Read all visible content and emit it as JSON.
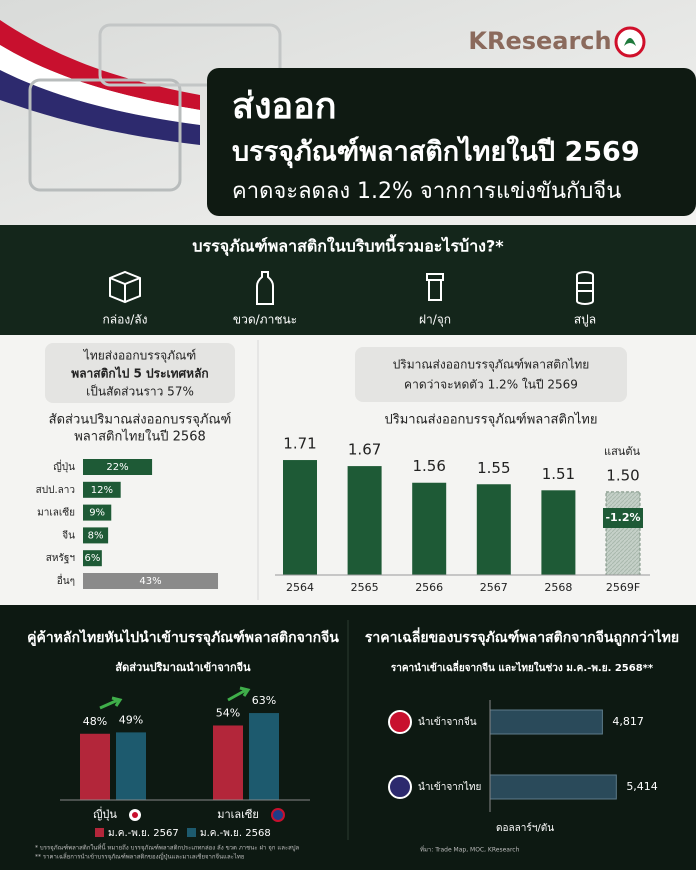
{
  "header": {
    "brand": "KResearch",
    "title_lines": [
      "ส่งออก",
      "บรรจุภัณฑ์พลาสติกไทยในปี 2569",
      "คาดจะลดลง 1.2% จากการแข่งขันกับจีน"
    ]
  },
  "products": {
    "title": "บรรจุภัณฑ์พลาสติกในบริบทนี้รวมอะไรบ้าง?*",
    "items": [
      "กล่อง/ลัง",
      "ขวด/ภาชนะ",
      "ฝา/จุก",
      "สปูล"
    ]
  },
  "callouts": [
    [
      "ไทยส่งออกบรรจุภัณฑ์",
      "พลาสติกไป 5 ประเทศหลัก",
      "เป็นสัดส่วนราว 57%"
    ],
    [
      "ปริมาณส่งออกบรรจุภัณฑ์พลาสติกไทย",
      "คาดว่าจะหดตัว 1.2% ในปี 2569"
    ]
  ],
  "chart_data": [
    {
      "type": "hbar",
      "title": [
        "สัดส่วนปริมาณส่งออกบรรจุภัณฑ์",
        "พลาสติกไทยในปี 2568"
      ],
      "categories": [
        "ญี่ปุ่น",
        "สปป.ลาว",
        "มาเลเซีย",
        "จีน",
        "สหรัฐฯ",
        "อื่นๆ"
      ],
      "values": [
        22,
        12,
        9,
        8,
        6,
        43
      ],
      "value_labels": [
        "22%",
        "12%",
        "9%",
        "8%",
        "6%",
        "43%"
      ],
      "colors": [
        "#1e5a36",
        "#1e5a36",
        "#1e5a36",
        "#1e5a36",
        "#1e5a36",
        "#8a8a8a"
      ],
      "xlim": [
        0,
        50
      ]
    },
    {
      "type": "bar",
      "title": "ปริมาณส่งออกบรรจุภัณฑ์พลาสติกไทย",
      "unit": "แสนตัน",
      "categories": [
        "2564",
        "2565",
        "2566",
        "2567",
        "2568",
        "2569F"
      ],
      "values": [
        1.71,
        1.67,
        1.56,
        1.55,
        1.51,
        1.5
      ],
      "value_labels": [
        "1.71",
        "1.67",
        "1.56",
        "1.55",
        "1.51",
        "1.50"
      ],
      "colors": [
        "#1e5a36",
        "#1e5a36",
        "#1e5a36",
        "#1e5a36",
        "#1e5a36",
        "#c5d0c8"
      ],
      "ylim": [
        0.95,
        1.75
      ],
      "annotation": "-1.2%"
    },
    {
      "type": "grouped-bar",
      "heading": "คู่ค้าหลักไทยหันไปนำเข้าบรรจุภัณฑ์พลาสติกจากจีน",
      "title": "สัดส่วนปริมาณนำเข้าจากจีน",
      "categories": [
        "ญี่ปุ่น",
        "มาเลเซีย"
      ],
      "series": [
        {
          "name": "ม.ค.-พ.ย. 2567",
          "color": "#b3263a",
          "values": [
            48,
            54
          ],
          "value_labels": [
            "48%",
            "54%"
          ]
        },
        {
          "name": "ม.ค.-พ.ย. 2568",
          "color": "#1d5a6e",
          "values": [
            49,
            63
          ],
          "value_labels": [
            "49%",
            "63%"
          ]
        }
      ],
      "ylim": [
        0,
        100
      ]
    },
    {
      "type": "hbar",
      "heading": "ราคาเฉลี่ยของบรรจุภัณฑ์พลาสติกจากจีนถูกกว่าไทย",
      "title": "ราคานำเข้าเฉลี่ยจากจีน และไทยในช่วง ม.ค.-พ.ย. 2568**",
      "categories": [
        "นำเข้าจากจีน",
        "นำเข้าจากไทย"
      ],
      "values": [
        4817,
        5414
      ],
      "value_labels": [
        "4,817",
        "5,414"
      ],
      "colors": [
        "#2a4a5a",
        "#2a4a5a"
      ],
      "xlim": [
        0,
        6000
      ],
      "unit": "ดอลลาร์ฯ/ตัน"
    }
  ],
  "footnotes": [
    "* บรรจุภัณฑ์พลาสติกในที่นี้ หมายถึง บรรจุภัณฑ์พลาสติกประเภทกล่อง ลัง ขวด ภาชนะ ฝา จุก และสปูล",
    "** ราคาเฉลี่ยการนำเข้าบรรจุภัณฑ์พลาสติกของญี่ปุ่นและมาเลเซียจากจีนและไทย"
  ],
  "source": "ที่มา: Trade Map, MOC, KResearch"
}
